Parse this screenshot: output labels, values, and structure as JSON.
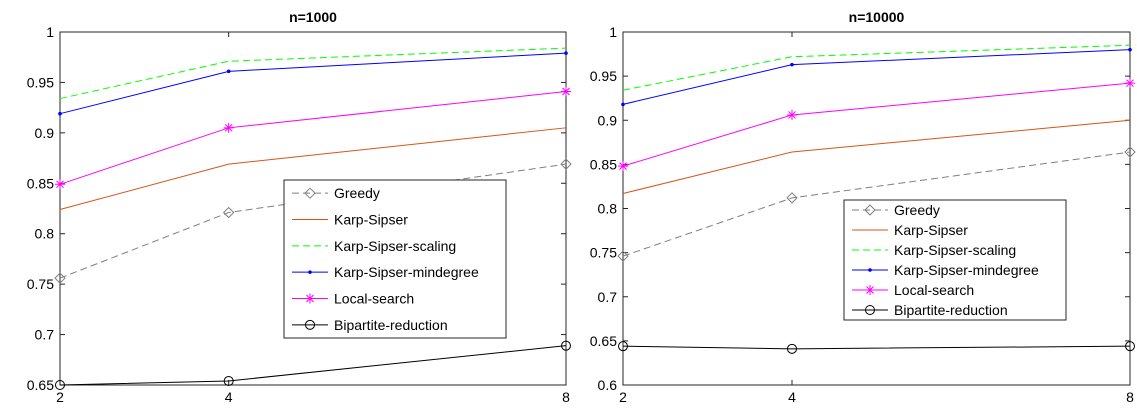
{
  "chart_data": [
    {
      "type": "line",
      "title": "n=1000",
      "xlabel": "",
      "ylabel": "",
      "x": [
        2,
        4,
        8
      ],
      "x_ticks": [
        "2",
        "4",
        "8"
      ],
      "y_ticks": [
        "0.65",
        "0.7",
        "0.75",
        "0.8",
        "0.85",
        "0.9",
        "0.95",
        "1"
      ],
      "ylim": [
        0.65,
        1.0
      ],
      "grid": false,
      "legend_placement": "center-right",
      "series": [
        {
          "name": "Greedy",
          "values": [
            0.756,
            0.821,
            0.869
          ],
          "color": "#7f7f7f",
          "dash": "dashed",
          "marker": "diamond"
        },
        {
          "name": "Karp-Sipser",
          "values": [
            0.824,
            0.869,
            0.905
          ],
          "color": "#d95319",
          "dash": "solid",
          "marker": "none"
        },
        {
          "name": "Karp-Sipser-scaling",
          "values": [
            0.934,
            0.971,
            0.984
          ],
          "color": "#00ff00",
          "dash": "dashed",
          "marker": "none"
        },
        {
          "name": "Karp-Sipser-mindegree",
          "values": [
            0.919,
            0.961,
            0.979
          ],
          "color": "#0000ff",
          "dash": "solid",
          "marker": "point"
        },
        {
          "name": "Local-search",
          "values": [
            0.849,
            0.905,
            0.941
          ],
          "color": "#ff00ff",
          "dash": "solid",
          "marker": "asterisk"
        },
        {
          "name": "Bipartite-reduction",
          "values": [
            0.65,
            0.654,
            0.689
          ],
          "color": "#000000",
          "dash": "solid",
          "marker": "circle"
        }
      ]
    },
    {
      "type": "line",
      "title": "n=10000",
      "xlabel": "",
      "ylabel": "",
      "x": [
        2,
        4,
        8
      ],
      "x_ticks": [
        "2",
        "4",
        "8"
      ],
      "y_ticks": [
        "0.6",
        "0.65",
        "0.7",
        "0.75",
        "0.8",
        "0.85",
        "0.9",
        "0.95",
        "1"
      ],
      "ylim": [
        0.6,
        1.0
      ],
      "grid": false,
      "legend_placement": "center-right",
      "series": [
        {
          "name": "Greedy",
          "values": [
            0.746,
            0.812,
            0.864
          ],
          "color": "#7f7f7f",
          "dash": "dashed",
          "marker": "diamond"
        },
        {
          "name": "Karp-Sipser",
          "values": [
            0.817,
            0.864,
            0.9
          ],
          "color": "#d95319",
          "dash": "solid",
          "marker": "none"
        },
        {
          "name": "Karp-Sipser-scaling",
          "values": [
            0.934,
            0.972,
            0.985
          ],
          "color": "#00ff00",
          "dash": "dashed",
          "marker": "none"
        },
        {
          "name": "Karp-Sipser-mindegree",
          "values": [
            0.918,
            0.963,
            0.98
          ],
          "color": "#0000ff",
          "dash": "solid",
          "marker": "point"
        },
        {
          "name": "Local-search",
          "values": [
            0.848,
            0.906,
            0.942
          ],
          "color": "#ff00ff",
          "dash": "solid",
          "marker": "asterisk"
        },
        {
          "name": "Bipartite-reduction",
          "values": [
            0.644,
            0.641,
            0.644
          ],
          "color": "#000000",
          "dash": "solid",
          "marker": "circle"
        }
      ]
    }
  ]
}
